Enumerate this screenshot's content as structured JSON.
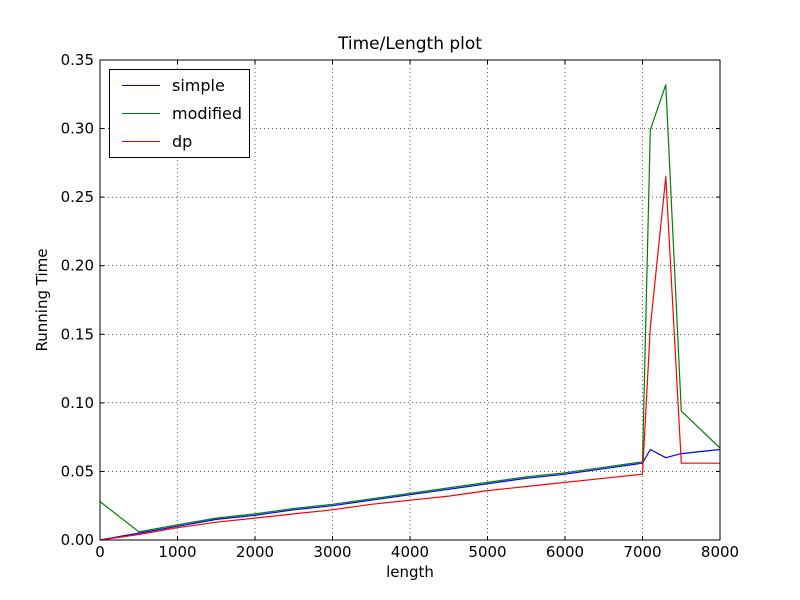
{
  "chart_data": {
    "type": "line",
    "title": "Time/Length plot",
    "xlabel": "length",
    "ylabel": "Running Time",
    "xlim": [
      0,
      8000
    ],
    "ylim": [
      0,
      0.35
    ],
    "xticks": [
      "0",
      "1000",
      "2000",
      "3000",
      "4000",
      "5000",
      "6000",
      "7000",
      "8000"
    ],
    "yticks": [
      "0.00",
      "0.05",
      "0.10",
      "0.15",
      "0.20",
      "0.25",
      "0.30",
      "0.35"
    ],
    "grid": true,
    "legend_position": "top-left",
    "x": [
      0,
      500,
      1000,
      1500,
      2000,
      2500,
      3000,
      3500,
      4000,
      4500,
      5000,
      5500,
      6000,
      6500,
      7000,
      7100,
      7300,
      7500,
      8000
    ],
    "series": [
      {
        "name": "simple",
        "color": "#0000ff",
        "values": [
          0.0,
          0.005,
          0.01,
          0.015,
          0.018,
          0.022,
          0.025,
          0.029,
          0.033,
          0.037,
          0.041,
          0.045,
          0.048,
          0.052,
          0.056,
          0.066,
          0.06,
          0.063,
          0.066
        ]
      },
      {
        "name": "modified",
        "color": "#008000",
        "values": [
          0.028,
          0.006,
          0.011,
          0.016,
          0.019,
          0.023,
          0.026,
          0.03,
          0.034,
          0.038,
          0.042,
          0.046,
          0.049,
          0.053,
          0.057,
          0.299,
          0.332,
          0.094,
          0.067
        ]
      },
      {
        "name": "dp",
        "color": "#ff0000",
        "values": [
          0.0,
          0.004,
          0.009,
          0.013,
          0.016,
          0.019,
          0.022,
          0.026,
          0.029,
          0.032,
          0.036,
          0.039,
          0.042,
          0.045,
          0.048,
          0.155,
          0.265,
          0.056,
          0.056
        ]
      }
    ]
  }
}
